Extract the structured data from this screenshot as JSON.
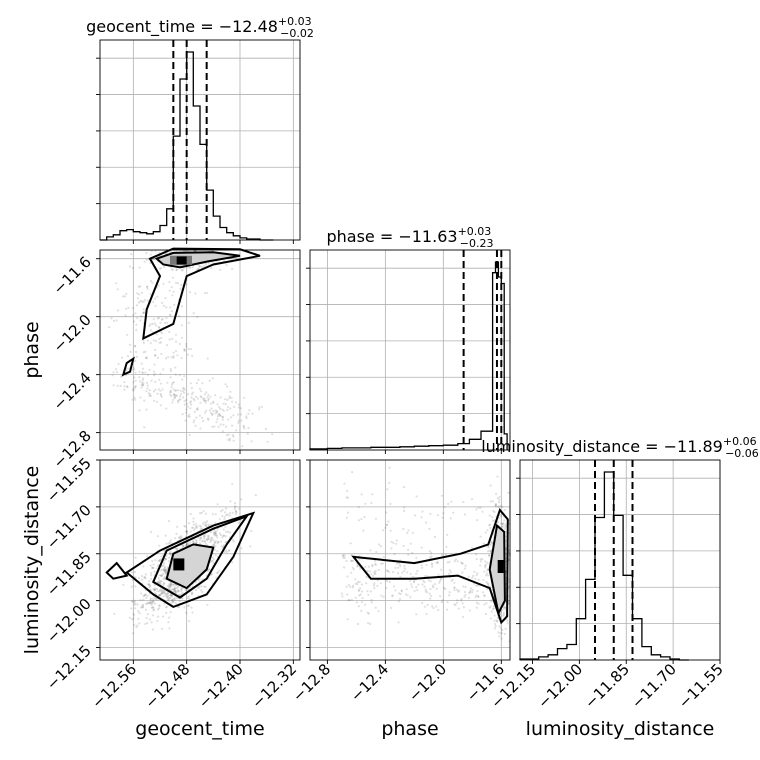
{
  "chart_data": {
    "type": "corner",
    "parameters": [
      "geocent_time",
      "phase",
      "luminosity_distance"
    ],
    "titles": [
      {
        "param": "geocent_time",
        "prefix": "geocent_time = ",
        "median": "−12.48",
        "plus": "+0.03",
        "minus": "−0.02"
      },
      {
        "param": "phase",
        "prefix": "phase = ",
        "median": "−11.63",
        "plus": "+0.03",
        "minus": "−0.23"
      },
      {
        "param": "luminosity_distance",
        "prefix": "luminosity_distance = ",
        "median": "−11.89",
        "plus": "+0.06",
        "minus": "−0.06"
      }
    ],
    "axis_labels": [
      "geocent_time",
      "phase",
      "luminosity_distance"
    ],
    "ranges": {
      "geocent_time": [
        -12.61,
        -12.31
      ],
      "phase": [
        -12.92,
        -11.54
      ],
      "luminosity_distance": [
        -12.19,
        -11.55
      ]
    },
    "ticks": {
      "geocent_time": [
        -12.56,
        -12.48,
        -12.4,
        -12.32
      ],
      "phase": [
        -12.8,
        -12.4,
        -12.0,
        -11.6
      ],
      "luminosity_distance": [
        -12.15,
        -12.0,
        -11.85,
        -11.7,
        -11.55
      ]
    },
    "tick_labels": {
      "geocent_time": [
        "−12.56",
        "−12.48",
        "−12.40",
        "−12.32"
      ],
      "phase": [
        "−12.8",
        "−12.4",
        "−12.0",
        "−11.6"
      ],
      "luminosity_distance": [
        "−12.15",
        "−12.00",
        "−11.85",
        "−11.70",
        "−11.55"
      ]
    },
    "quantiles": {
      "geocent_time": [
        -12.5,
        -12.48,
        -12.45
      ],
      "phase": [
        -11.86,
        -11.63,
        -11.6
      ],
      "luminosity_distance": [
        -11.95,
        -11.89,
        -11.83
      ]
    },
    "histograms": {
      "geocent_time": {
        "edges": [
          -12.61,
          -12.6,
          -12.59,
          -12.58,
          -12.57,
          -12.56,
          -12.55,
          -12.54,
          -12.53,
          -12.52,
          -12.51,
          -12.5,
          -12.49,
          -12.48,
          -12.47,
          -12.46,
          -12.45,
          -12.44,
          -12.43,
          -12.42,
          -12.41,
          -12.4,
          -12.39,
          -12.38,
          -12.37,
          -12.36,
          -12.35
        ],
        "counts": [
          0,
          3,
          5,
          9,
          10,
          8,
          7,
          6,
          8,
          14,
          30,
          100,
          155,
          181,
          129,
          92,
          48,
          23,
          12,
          7,
          4,
          2,
          1,
          1,
          0,
          0
        ]
      },
      "phase": {
        "edges": [
          -12.92,
          -12.8,
          -12.7,
          -12.6,
          -12.5,
          -12.4,
          -12.3,
          -12.2,
          -12.1,
          -12.0,
          -11.9,
          -11.82,
          -11.74,
          -11.66,
          -11.64,
          -11.62,
          -11.6,
          -11.58,
          -11.56
        ],
        "counts": [
          2,
          3,
          4,
          4,
          5,
          5,
          6,
          7,
          8,
          9,
          12,
          20,
          35,
          330,
          350,
          322,
          310,
          30
        ]
      },
      "luminosity_distance": {
        "edges": [
          -12.19,
          -12.13,
          -12.1,
          -12.07,
          -12.04,
          -12.01,
          -11.98,
          -11.95,
          -11.92,
          -11.89,
          -11.86,
          -11.83,
          -11.8,
          -11.77,
          -11.74,
          -11.71,
          -11.68,
          -11.65
        ],
        "counts": [
          1,
          3,
          5,
          11,
          15,
          40,
          78,
          138,
          182,
          140,
          82,
          40,
          13,
          5,
          3,
          1,
          0
        ]
      }
    },
    "scatter_2d": {
      "phase_vs_geocent_time": {
        "mode": {
          "x": -12.49,
          "y": -11.6
        },
        "contours_note": "density contours around mode with tail toward (-12.57, -12.40)"
      },
      "luminosity_distance_vs_geocent_time": {
        "mode": {
          "x": -12.485,
          "y": -11.89
        }
      },
      "luminosity_distance_vs_phase": {
        "mode": {
          "x": -11.61,
          "y": -11.9
        }
      }
    },
    "grid": true
  }
}
